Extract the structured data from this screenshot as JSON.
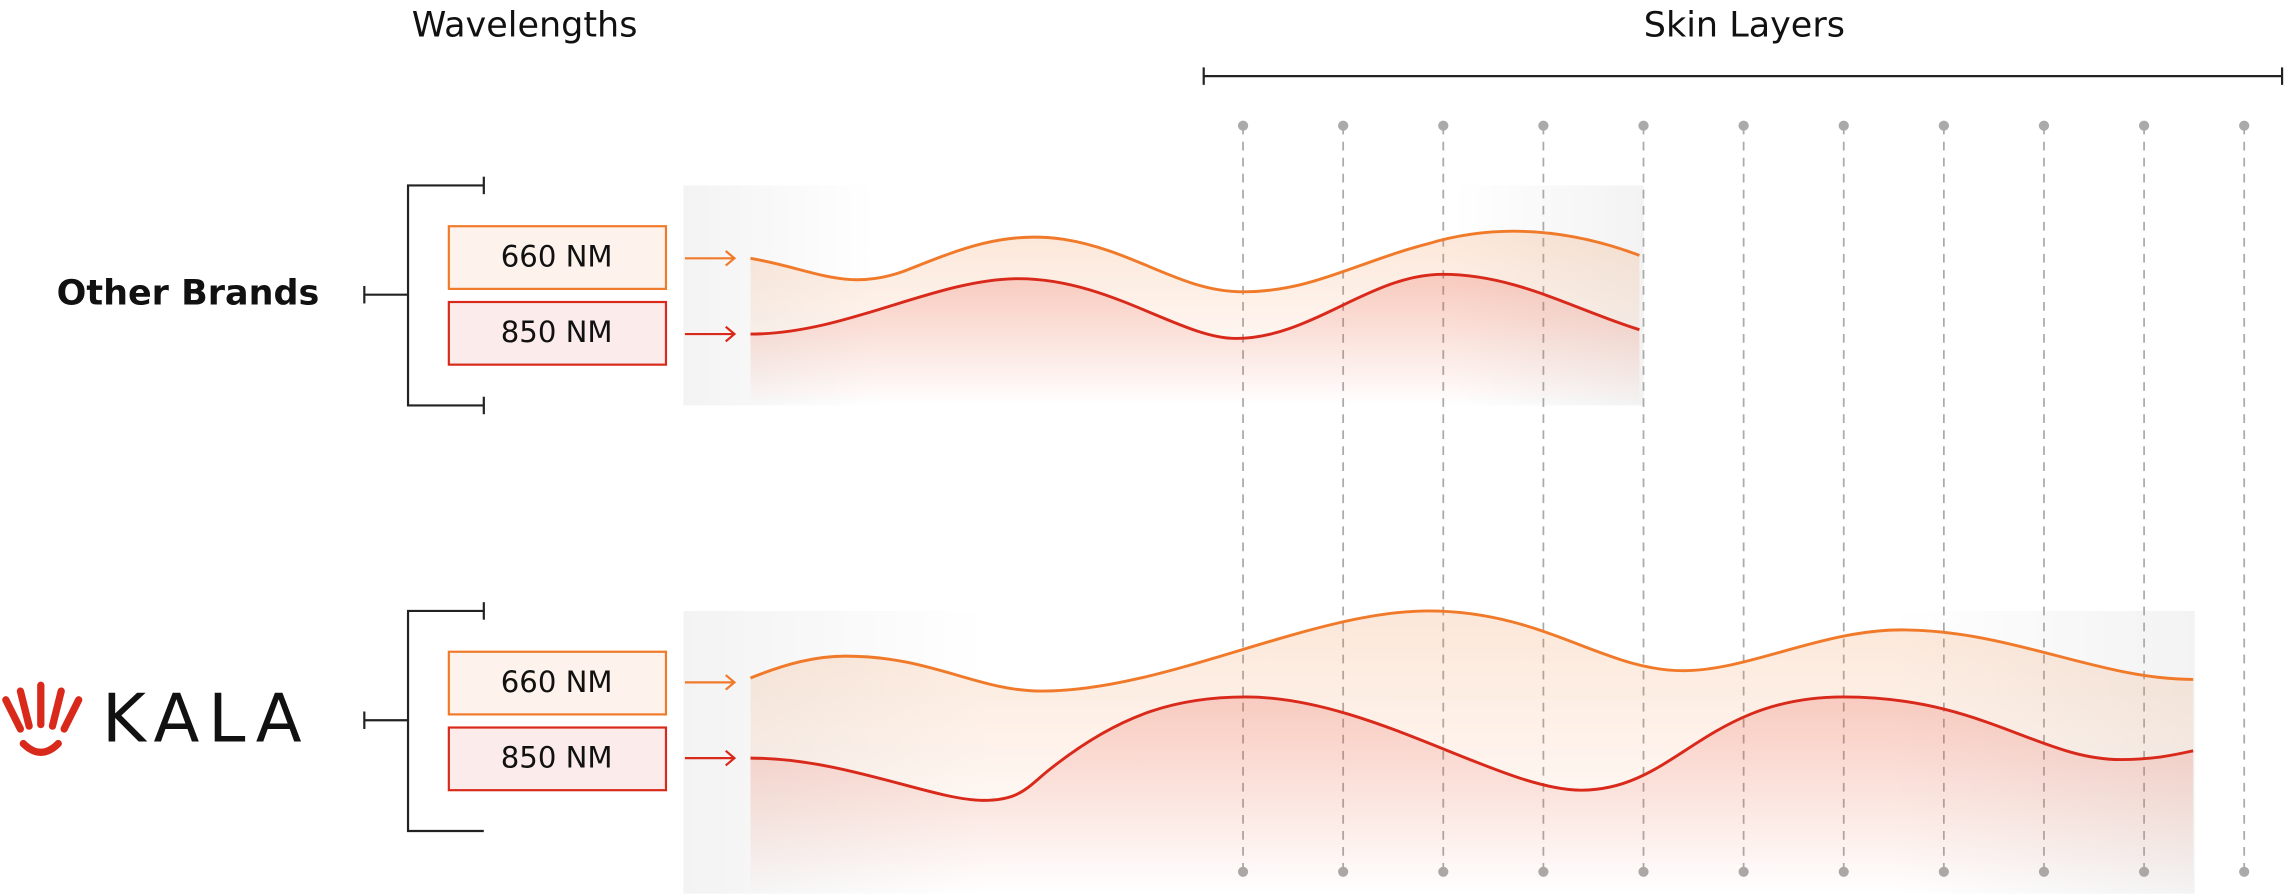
{
  "headers": {
    "wavelengths": "Wavelengths",
    "skin_layers": "Skin Layers"
  },
  "rows": [
    {
      "label": "Other Brands",
      "wavelengths": [
        "660 NM",
        "850 NM"
      ]
    },
    {
      "label": "KALA",
      "wavelengths": [
        "660 NM",
        "850 NM"
      ]
    }
  ]
}
